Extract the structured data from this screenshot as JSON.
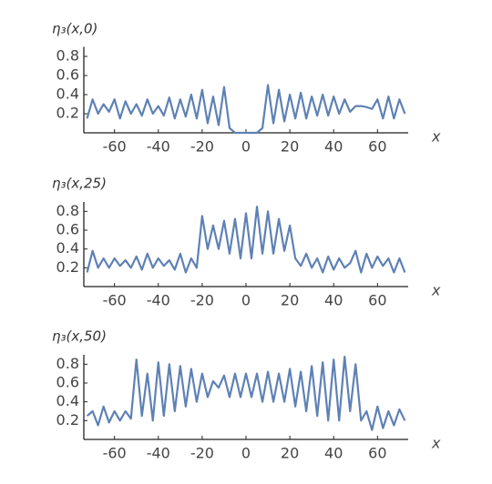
{
  "chart_data": [
    {
      "type": "line",
      "title": "η₃(x,0)",
      "x_label": "x",
      "color": "#5e81b5",
      "x": [
        -72.5,
        -70,
        -67.5,
        -65,
        -62.5,
        -60,
        -57.5,
        -55,
        -52.5,
        -50,
        -47.5,
        -45,
        -42.5,
        -40,
        -37.5,
        -35,
        -32.5,
        -30,
        -27.5,
        -25,
        -22.5,
        -20,
        -17.5,
        -15,
        -12.5,
        -10,
        -7.5,
        -5,
        -2.5,
        0,
        2.5,
        5,
        7.5,
        10,
        12.5,
        15,
        17.5,
        20,
        22.5,
        25,
        27.5,
        30,
        32.5,
        35,
        37.5,
        40,
        42.5,
        45,
        47.5,
        50,
        52.5,
        55,
        57.5,
        60,
        62.5,
        65,
        67.5,
        70,
        72.5
      ],
      "values": [
        0.15,
        0.35,
        0.2,
        0.3,
        0.22,
        0.35,
        0.15,
        0.33,
        0.2,
        0.3,
        0.18,
        0.35,
        0.2,
        0.28,
        0.18,
        0.37,
        0.15,
        0.35,
        0.17,
        0.4,
        0.15,
        0.45,
        0.1,
        0.38,
        0.08,
        0.48,
        0.05,
        0,
        0,
        0,
        0,
        0,
        0.05,
        0.5,
        0.1,
        0.45,
        0.12,
        0.4,
        0.15,
        0.42,
        0.15,
        0.38,
        0.18,
        0.4,
        0.18,
        0.38,
        0.2,
        0.35,
        0.22,
        0.28,
        0.28,
        0.27,
        0.25,
        0.35,
        0.15,
        0.38,
        0.15,
        0.35,
        0.2
      ],
      "xlim": [
        -74,
        74
      ],
      "xticks": [
        -60,
        -40,
        -20,
        0,
        20,
        40,
        60
      ],
      "ylim": [
        0,
        0.9
      ],
      "yticks": [
        0.2,
        0.4,
        0.6,
        0.8
      ]
    },
    {
      "type": "line",
      "title": "η₃(x,25)",
      "x_label": "x",
      "color": "#5e81b5",
      "x": [
        -72.5,
        -70,
        -67.5,
        -65,
        -62.5,
        -60,
        -57.5,
        -55,
        -52.5,
        -50,
        -47.5,
        -45,
        -42.5,
        -40,
        -37.5,
        -35,
        -32.5,
        -30,
        -27.5,
        -25,
        -22.5,
        -20,
        -17.5,
        -15,
        -12.5,
        -10,
        -7.5,
        -5,
        -2.5,
        0,
        2.5,
        5,
        7.5,
        10,
        12.5,
        15,
        17.5,
        20,
        22.5,
        25,
        27.5,
        30,
        32.5,
        35,
        37.5,
        40,
        42.5,
        45,
        47.5,
        50,
        52.5,
        55,
        57.5,
        60,
        62.5,
        65,
        67.5,
        70,
        72.5
      ],
      "values": [
        0.15,
        0.38,
        0.2,
        0.3,
        0.2,
        0.3,
        0.22,
        0.28,
        0.2,
        0.32,
        0.18,
        0.35,
        0.2,
        0.3,
        0.22,
        0.28,
        0.18,
        0.35,
        0.15,
        0.3,
        0.2,
        0.75,
        0.4,
        0.65,
        0.4,
        0.7,
        0.35,
        0.72,
        0.3,
        0.78,
        0.3,
        0.85,
        0.35,
        0.8,
        0.35,
        0.72,
        0.38,
        0.65,
        0.3,
        0.22,
        0.35,
        0.2,
        0.3,
        0.15,
        0.32,
        0.18,
        0.3,
        0.2,
        0.25,
        0.38,
        0.15,
        0.35,
        0.2,
        0.32,
        0.22,
        0.3,
        0.15,
        0.3,
        0.15
      ],
      "xlim": [
        -74,
        74
      ],
      "xticks": [
        -60,
        -40,
        -20,
        0,
        20,
        40,
        60
      ],
      "ylim": [
        0,
        0.9
      ],
      "yticks": [
        0.2,
        0.4,
        0.6,
        0.8
      ]
    },
    {
      "type": "line",
      "title": "η₃(x,50)",
      "x_label": "x",
      "color": "#5e81b5",
      "x": [
        -72.5,
        -70,
        -67.5,
        -65,
        -62.5,
        -60,
        -57.5,
        -55,
        -52.5,
        -50,
        -47.5,
        -45,
        -42.5,
        -40,
        -37.5,
        -35,
        -32.5,
        -30,
        -27.5,
        -25,
        -22.5,
        -20,
        -17.5,
        -15,
        -12.5,
        -10,
        -7.5,
        -5,
        -2.5,
        0,
        2.5,
        5,
        7.5,
        10,
        12.5,
        15,
        17.5,
        20,
        22.5,
        25,
        27.5,
        30,
        32.5,
        35,
        37.5,
        40,
        42.5,
        45,
        47.5,
        50,
        52.5,
        55,
        57.5,
        60,
        62.5,
        65,
        67.5,
        70,
        72.5
      ],
      "values": [
        0.25,
        0.3,
        0.15,
        0.35,
        0.18,
        0.3,
        0.2,
        0.3,
        0.22,
        0.85,
        0.25,
        0.7,
        0.2,
        0.82,
        0.25,
        0.8,
        0.3,
        0.78,
        0.35,
        0.75,
        0.4,
        0.7,
        0.45,
        0.62,
        0.55,
        0.68,
        0.45,
        0.7,
        0.45,
        0.7,
        0.45,
        0.7,
        0.4,
        0.72,
        0.4,
        0.7,
        0.4,
        0.75,
        0.35,
        0.72,
        0.3,
        0.78,
        0.25,
        0.82,
        0.2,
        0.85,
        0.2,
        0.88,
        0.3,
        0.8,
        0.2,
        0.3,
        0.1,
        0.35,
        0.12,
        0.3,
        0.15,
        0.32,
        0.2
      ],
      "xlim": [
        -74,
        74
      ],
      "xticks": [
        -60,
        -40,
        -20,
        0,
        20,
        40,
        60
      ],
      "ylim": [
        0,
        0.9
      ],
      "yticks": [
        0.2,
        0.4,
        0.6,
        0.8
      ]
    }
  ]
}
